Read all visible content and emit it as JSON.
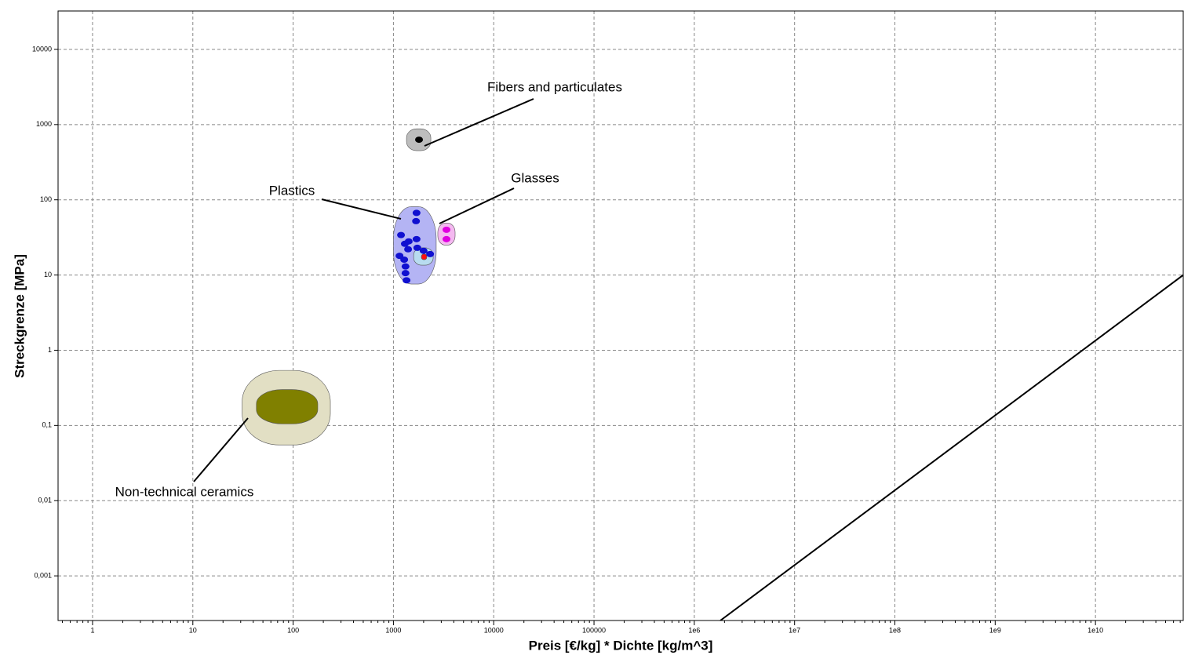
{
  "chart_data": {
    "type": "scatter",
    "x_label": "Preis [€/kg] * Dichte [kg/m^3]",
    "y_label": "Streckgrenze [MPa]",
    "log_x": true,
    "log_y": true,
    "grid": true,
    "xlim": [
      0.453,
      75000000000
    ],
    "ylim": [
      0.000255,
      32400
    ],
    "xticks": [
      1,
      10,
      100,
      1000,
      10000,
      100000,
      {
        "value": 1000000,
        "label": "1e6"
      },
      {
        "value": 10000000,
        "label": "1e7"
      },
      {
        "value": 100000000,
        "label": "1e8"
      },
      {
        "value": 1000000000,
        "label": "1e9"
      },
      {
        "value": 10000000000,
        "label": "1e10"
      }
    ],
    "yticks": [
      {
        "value": 0.001,
        "label": "0,001"
      },
      {
        "value": 0.01,
        "label": "0,01"
      },
      {
        "value": 0.1,
        "label": "0,1"
      },
      1,
      10,
      100,
      1000,
      10000
    ],
    "families": [
      {
        "name": "Non-technical ceramics",
        "point_color": "#000000",
        "regions": [
          {
            "color": "#e2dfc4",
            "x": [
              31,
              235
            ],
            "y": [
              0.055,
              0.54
            ]
          },
          {
            "color": "#808000",
            "x": [
              43,
              176
            ],
            "y": [
              0.105,
              0.3
            ]
          }
        ],
        "points": {
          "x": [],
          "y": []
        }
      },
      {
        "name": "Plastics",
        "point_color": "#1010d0",
        "regions": [
          {
            "color": "#b4b4f4",
            "x": [
              1000,
              2670
            ],
            "y": [
              7.6,
              81
            ]
          },
          {
            "color": "#b8dcf0",
            "x": [
              1590,
              2490
            ],
            "y": [
              13.5,
              23
            ]
          },
          {
            "color": "#ff1010",
            "x": [
              1900,
              2150
            ],
            "y": [
              16,
              19
            ]
          }
        ],
        "points": {
          "x": [
            1700,
            1680,
            1190,
            1300,
            1420,
            1700,
            1150,
            1280,
            1400,
            1730,
            2000,
            2320,
            1320,
            1320,
            1350
          ],
          "y": [
            67,
            52,
            34,
            26,
            28,
            30,
            18,
            16,
            22,
            23,
            21,
            19,
            13,
            10.6,
            8.5
          ]
        }
      },
      {
        "name": "Glasses",
        "point_color": "#e000e0",
        "regions": [
          {
            "color": "#f4b8f0",
            "x": [
              2770,
              4120
            ],
            "y": [
              25,
              49
            ]
          }
        ],
        "points": {
          "x": [
            3380,
            3380
          ],
          "y": [
            40,
            30
          ]
        }
      },
      {
        "name": "Fibers and particulates",
        "point_color": "#000000",
        "regions": [
          {
            "color": "#bdbdbd",
            "x": [
              1350,
              2360
            ],
            "y": [
              450,
              880
            ]
          }
        ],
        "points": {
          "x": [
            1800
          ],
          "y": [
            630
          ]
        }
      }
    ],
    "guide": {
      "x": [
        1820000,
        75000000000
      ],
      "y": [
        0.000255,
        10
      ]
    }
  }
}
